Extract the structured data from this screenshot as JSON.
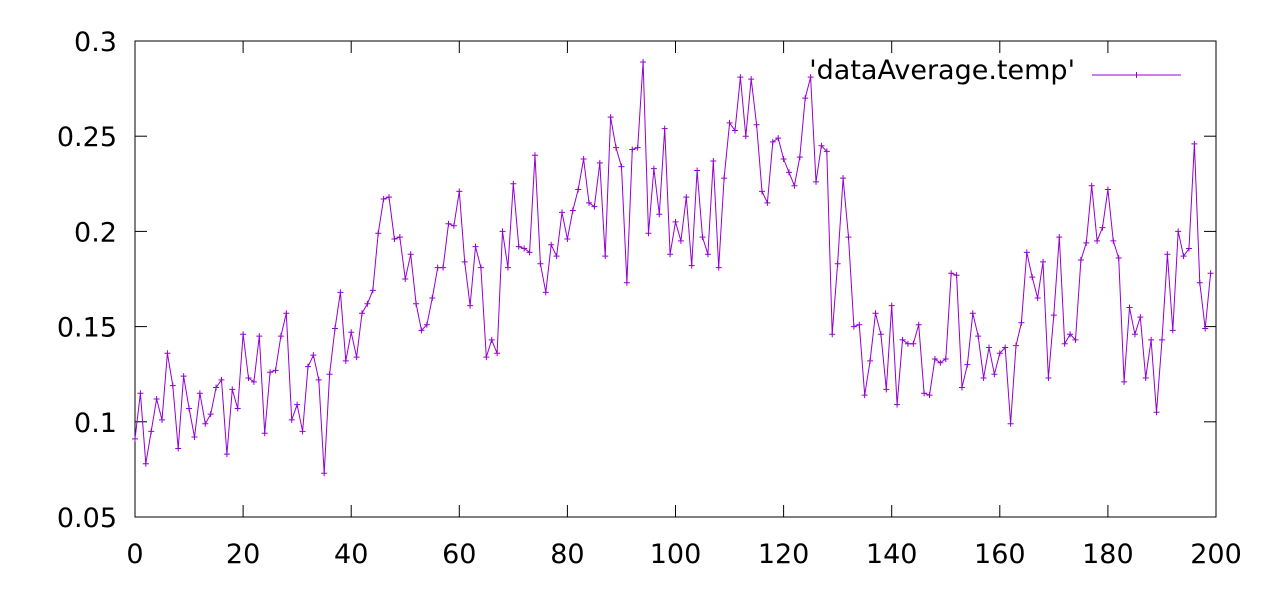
{
  "chart_data": {
    "type": "line",
    "title": "",
    "xlabel": "",
    "ylabel": "",
    "xlim": [
      0,
      200
    ],
    "ylim": [
      0.05,
      0.3
    ],
    "x_ticks": [
      0,
      20,
      40,
      60,
      80,
      100,
      120,
      140,
      160,
      180,
      200
    ],
    "y_ticks": [
      0.05,
      0.1,
      0.15,
      0.2,
      0.25,
      0.3
    ],
    "x_tick_labels": [
      "0",
      "20",
      "40",
      "60",
      "80",
      "100",
      "120",
      "140",
      "160",
      "180",
      "200"
    ],
    "y_tick_labels": [
      "0.05",
      "0.1",
      "0.15",
      "0.2",
      "0.25",
      "0.3"
    ],
    "grid": false,
    "legend_position": "top-right",
    "colors": {
      "series": "#9400d3",
      "axes": "#000000"
    },
    "series": [
      {
        "name": "'dataAverage.temp'",
        "marker": "plus",
        "x": [
          0,
          1,
          2,
          3,
          4,
          5,
          6,
          7,
          8,
          9,
          10,
          11,
          12,
          13,
          14,
          15,
          16,
          17,
          18,
          19,
          20,
          21,
          22,
          23,
          24,
          25,
          26,
          27,
          28,
          29,
          30,
          31,
          32,
          33,
          34,
          35,
          36,
          37,
          38,
          39,
          40,
          41,
          42,
          43,
          44,
          45,
          46,
          47,
          48,
          49,
          50,
          51,
          52,
          53,
          54,
          55,
          56,
          57,
          58,
          59,
          60,
          61,
          62,
          63,
          64,
          65,
          66,
          67,
          68,
          69,
          70,
          71,
          72,
          73,
          74,
          75,
          76,
          77,
          78,
          79,
          80,
          81,
          82,
          83,
          84,
          85,
          86,
          87,
          88,
          89,
          90,
          91,
          92,
          93,
          94,
          95,
          96,
          97,
          98,
          99,
          100,
          101,
          102,
          103,
          104,
          105,
          106,
          107,
          108,
          109,
          110,
          111,
          112,
          113,
          114,
          115,
          116,
          117,
          118,
          119,
          120,
          121,
          122,
          123,
          124,
          125,
          126,
          127,
          128,
          129,
          130,
          131,
          132,
          133,
          134,
          135,
          136,
          137,
          138,
          139,
          140,
          141,
          142,
          143,
          144,
          145,
          146,
          147,
          148,
          149,
          150,
          151,
          152,
          153,
          154,
          155,
          156,
          157,
          158,
          159,
          160,
          161,
          162,
          163,
          164,
          165,
          166,
          167,
          168,
          169,
          170,
          171,
          172,
          173,
          174,
          175,
          176,
          177,
          178,
          179,
          180,
          181,
          182,
          183,
          184,
          185,
          186,
          187,
          188,
          189,
          190,
          191,
          192,
          193,
          194,
          195,
          196,
          197,
          198,
          199
        ],
        "y": [
          0.091,
          0.115,
          0.078,
          0.095,
          0.112,
          0.101,
          0.136,
          0.119,
          0.086,
          0.124,
          0.107,
          0.092,
          0.115,
          0.099,
          0.104,
          0.118,
          0.122,
          0.083,
          0.117,
          0.107,
          0.146,
          0.123,
          0.121,
          0.145,
          0.094,
          0.126,
          0.127,
          0.145,
          0.157,
          0.101,
          0.109,
          0.095,
          0.129,
          0.135,
          0.122,
          0.073,
          0.125,
          0.149,
          0.168,
          0.132,
          0.147,
          0.134,
          0.157,
          0.162,
          0.169,
          0.199,
          0.217,
          0.218,
          0.196,
          0.197,
          0.175,
          0.188,
          0.162,
          0.148,
          0.151,
          0.165,
          0.181,
          0.181,
          0.204,
          0.203,
          0.221,
          0.184,
          0.161,
          0.192,
          0.181,
          0.134,
          0.143,
          0.136,
          0.2,
          0.181,
          0.225,
          0.192,
          0.191,
          0.189,
          0.24,
          0.183,
          0.168,
          0.193,
          0.187,
          0.21,
          0.196,
          0.211,
          0.222,
          0.238,
          0.215,
          0.213,
          0.236,
          0.187,
          0.26,
          0.244,
          0.234,
          0.173,
          0.243,
          0.244,
          0.289,
          0.199,
          0.233,
          0.209,
          0.254,
          0.188,
          0.205,
          0.195,
          0.218,
          0.182,
          0.232,
          0.197,
          0.188,
          0.237,
          0.181,
          0.228,
          0.257,
          0.253,
          0.281,
          0.25,
          0.28,
          0.256,
          0.221,
          0.215,
          0.247,
          0.249,
          0.238,
          0.231,
          0.224,
          0.239,
          0.27,
          0.281,
          0.226,
          0.245,
          0.242,
          0.146,
          0.183,
          0.228,
          0.197,
          0.15,
          0.151,
          0.114,
          0.132,
          0.157,
          0.146,
          0.117,
          0.161,
          0.109,
          0.143,
          0.141,
          0.141,
          0.151,
          0.115,
          0.114,
          0.133,
          0.131,
          0.133,
          0.178,
          0.177,
          0.118,
          0.13,
          0.157,
          0.145,
          0.123,
          0.139,
          0.125,
          0.136,
          0.139,
          0.099,
          0.14,
          0.152,
          0.189,
          0.176,
          0.165,
          0.184,
          0.123,
          0.156,
          0.197,
          0.141,
          0.146,
          0.143,
          0.185,
          0.194,
          0.224,
          0.195,
          0.202,
          0.222,
          0.195,
          0.186,
          0.121,
          0.16,
          0.146,
          0.155,
          0.123,
          0.143,
          0.105,
          0.143,
          0.188,
          0.148,
          0.2,
          0.187,
          0.191,
          0.246,
          0.173,
          0.149,
          0.178
        ]
      }
    ]
  }
}
